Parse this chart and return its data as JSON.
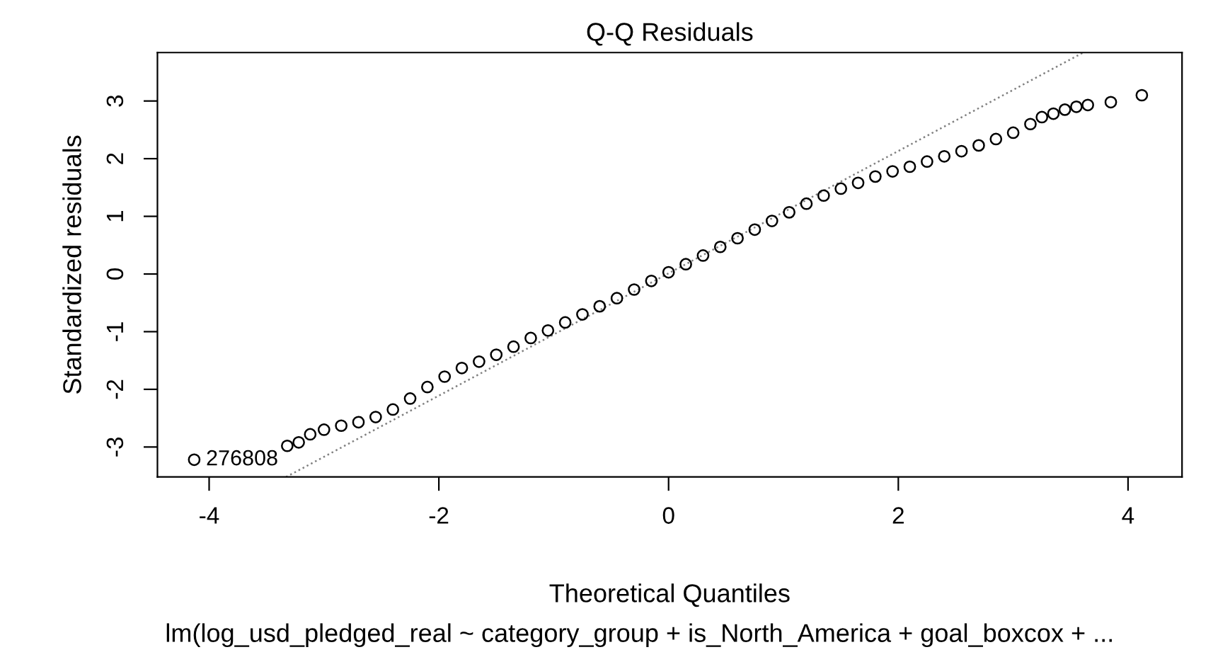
{
  "chart_data": {
    "type": "scatter",
    "title": "Q-Q Residuals",
    "xlabel": "Theoretical Quantiles",
    "ylabel": "Standardized residuals",
    "annotations": [
      {
        "text": "276808",
        "x": -4.13,
        "y": -3.22
      },
      "lm(log_usd_pledged_real ~ category_group + is_North_America + goal_boxcox + ..."
    ],
    "xlim": [
      -4.45,
      4.47
    ],
    "ylim": [
      -3.52,
      3.84
    ],
    "xticks": [
      -4,
      -2,
      0,
      2,
      4
    ],
    "yticks": [
      -3,
      -2,
      -1,
      0,
      1,
      2,
      3
    ],
    "grid": false,
    "marker": "circle",
    "series": [
      {
        "color": "#000000",
        "x": [
          -4.13,
          -3.32,
          -3.22,
          -3.12,
          -3.0,
          -2.85,
          -2.7,
          -2.55,
          -2.4,
          -2.25,
          -2.1,
          -1.95,
          -1.8,
          -1.65,
          -1.5,
          -1.35,
          -1.2,
          -1.05,
          -0.9,
          -0.75,
          -0.6,
          -0.45,
          -0.3,
          -0.15,
          0.0,
          0.15,
          0.3,
          0.45,
          0.6,
          0.75,
          0.9,
          1.05,
          1.2,
          1.35,
          1.5,
          1.65,
          1.8,
          1.95,
          2.1,
          2.25,
          2.4,
          2.55,
          2.7,
          2.85,
          3.0,
          3.15,
          3.25,
          3.35,
          3.45,
          3.55,
          3.65,
          3.85,
          4.12
        ],
        "values": [
          -3.22,
          -2.98,
          -2.92,
          -2.78,
          -2.7,
          -2.63,
          -2.57,
          -2.48,
          -2.35,
          -2.16,
          -1.96,
          -1.78,
          -1.63,
          -1.52,
          -1.4,
          -1.26,
          -1.11,
          -0.98,
          -0.84,
          -0.7,
          -0.56,
          -0.42,
          -0.27,
          -0.12,
          0.03,
          0.17,
          0.32,
          0.47,
          0.62,
          0.77,
          0.92,
          1.07,
          1.22,
          1.36,
          1.48,
          1.58,
          1.69,
          1.78,
          1.86,
          1.95,
          2.04,
          2.13,
          2.23,
          2.34,
          2.45,
          2.6,
          2.72,
          2.78,
          2.85,
          2.9,
          2.93,
          2.98,
          3.1
        ]
      },
      {
        "type": "line",
        "color": "#808080",
        "line_style": "dotted",
        "marker": "none",
        "x": [
          -3.33,
          3.61
        ],
        "values": [
          -3.52,
          3.84
        ]
      }
    ]
  }
}
